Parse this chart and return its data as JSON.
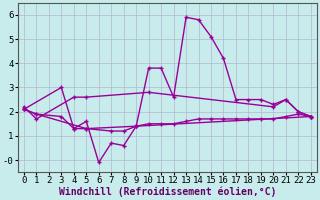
{
  "xlabel": "Windchill (Refroidissement éolien,°C)",
  "background_color": "#c8ecec",
  "plot_bg_color": "#c8ecec",
  "grid_color": "#b0b0cc",
  "line_color": "#990099",
  "hours": [
    0,
    1,
    2,
    3,
    4,
    5,
    6,
    7,
    8,
    9,
    10,
    11,
    12,
    13,
    14,
    15,
    16,
    17,
    18,
    19,
    20,
    21,
    22,
    23
  ],
  "line1_x": [
    0,
    1,
    4,
    5,
    10,
    20,
    21,
    22,
    23
  ],
  "line1_y": [
    2.2,
    1.7,
    2.6,
    2.6,
    2.8,
    2.2,
    2.5,
    2.0,
    1.8
  ],
  "line2_x": [
    0,
    3,
    4,
    5,
    6,
    7,
    8,
    9,
    10,
    11,
    12,
    13,
    14,
    15,
    16,
    17,
    18,
    19,
    20,
    21,
    22,
    23
  ],
  "line2_y": [
    2.1,
    3.0,
    1.3,
    1.6,
    -0.1,
    0.7,
    0.6,
    1.4,
    3.8,
    3.8,
    2.6,
    5.9,
    5.8,
    5.1,
    4.2,
    2.5,
    2.5,
    2.5,
    2.3,
    2.5,
    2.0,
    1.8
  ],
  "line3_x": [
    0,
    1,
    5,
    9,
    23
  ],
  "line3_y": [
    2.1,
    1.9,
    1.3,
    1.4,
    1.8
  ],
  "line4_x": [
    0,
    1,
    3,
    4,
    5,
    7,
    8,
    9,
    10,
    11,
    12,
    13,
    14,
    15,
    16,
    17,
    18,
    19,
    20,
    21,
    22,
    23
  ],
  "line4_y": [
    2.1,
    1.9,
    1.8,
    1.3,
    1.3,
    1.2,
    1.2,
    1.4,
    1.5,
    1.5,
    1.5,
    1.6,
    1.7,
    1.7,
    1.7,
    1.7,
    1.7,
    1.7,
    1.7,
    1.8,
    1.9,
    1.8
  ],
  "ylim": [
    -0.5,
    6.5
  ],
  "ytick_vals": [
    0,
    1,
    2,
    3,
    4,
    5,
    6
  ],
  "ytick_labels": [
    "-0",
    "1",
    "2",
    "3",
    "4",
    "5",
    "6"
  ],
  "xlabel_color": "#660066",
  "xlabel_fontsize": 7,
  "tick_fontsize": 6.5,
  "marker_size": 3.5,
  "lw_main": 1.0
}
